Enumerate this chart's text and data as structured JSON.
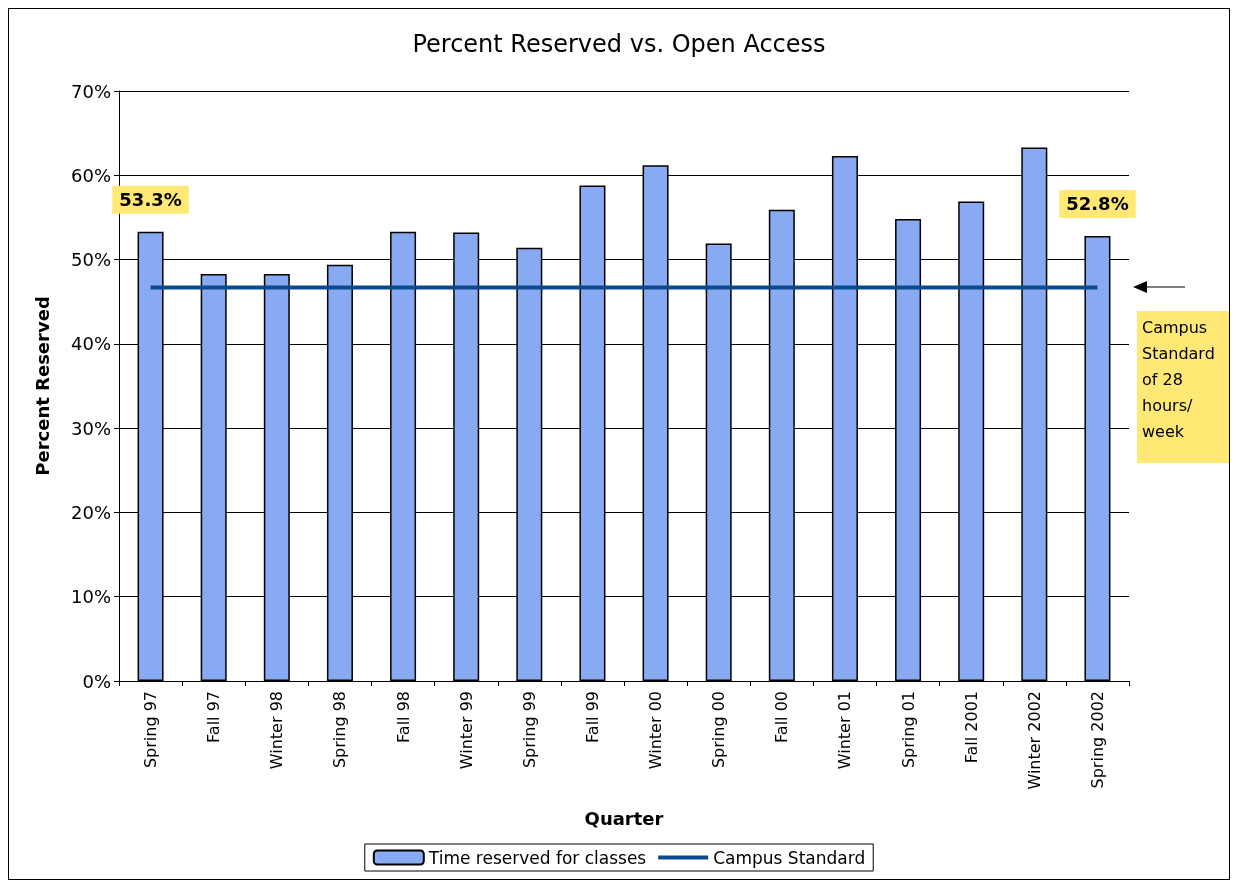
{
  "chart_data": {
    "type": "bar",
    "title": "Percent Reserved vs. Open Access",
    "xlabel": "Quarter",
    "ylabel": "Percent Reserved",
    "categories": [
      "Spring 97",
      "Fall 97",
      "Winter 98",
      "Spring 98",
      "Fall 98",
      "Winter 99",
      "Spring 99",
      "Fall 99",
      "Winter 00",
      "Spring 00",
      "Fall 00",
      "Winter 01",
      "Spring 01",
      "Fall 2001",
      "Winter 2002",
      "Spring 2002"
    ],
    "series": [
      {
        "name": "Time reserved for classes",
        "color": "#88aaf2",
        "values": [
          53.3,
          48.3,
          48.3,
          49.4,
          53.3,
          53.2,
          51.4,
          58.8,
          61.2,
          51.9,
          55.9,
          62.3,
          54.8,
          56.9,
          63.3,
          52.8
        ],
        "value_labels": [
          "53.3%",
          null,
          null,
          null,
          null,
          null,
          null,
          null,
          null,
          null,
          null,
          null,
          null,
          null,
          null,
          "52.8%"
        ]
      },
      {
        "name": "Campus Standard",
        "type": "line",
        "color": "#0b4a8e",
        "marker": "none",
        "values": [
          46.7,
          46.7,
          46.7,
          46.7,
          46.7,
          46.7,
          46.7,
          46.7,
          46.7,
          46.7,
          46.7,
          46.7,
          46.7,
          46.7,
          46.7,
          46.7
        ]
      }
    ],
    "ylim": [
      0,
      70
    ],
    "yticks": [
      {
        "value": 0,
        "label": "0%"
      },
      {
        "value": 10,
        "label": "10%"
      },
      {
        "value": 20,
        "label": "20%"
      },
      {
        "value": 30,
        "label": "30%"
      },
      {
        "value": 40,
        "label": "40%"
      },
      {
        "value": 50,
        "label": "50%"
      },
      {
        "value": 60,
        "label": "60%"
      },
      {
        "value": 70,
        "label": "70%"
      }
    ],
    "grid": "y",
    "legend": "bottom",
    "annotations": [
      "Campus Standard of 28 hours/ week"
    ]
  }
}
